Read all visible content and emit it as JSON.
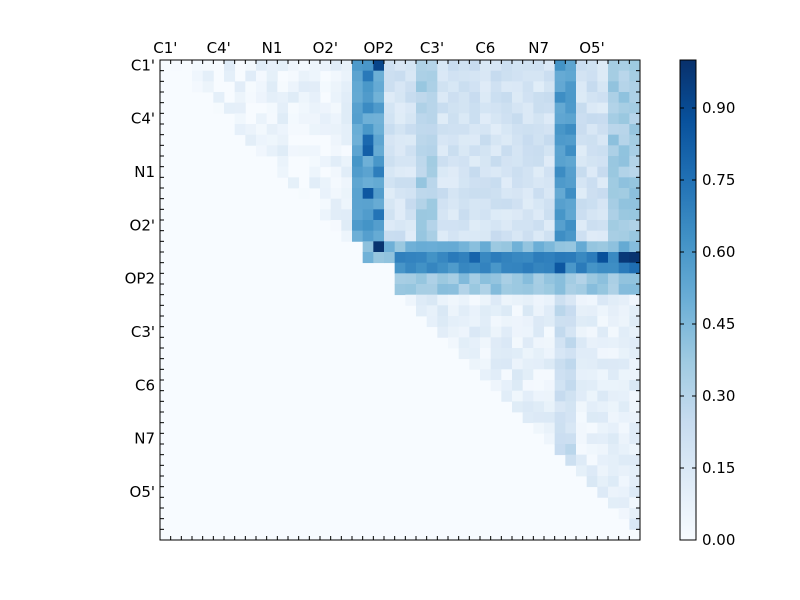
{
  "chart_data": {
    "type": "heatmap",
    "title": "",
    "xlabel": "",
    "ylabel": "",
    "colormap": "Blues",
    "cmap_stops": [
      "#f7fbff",
      "#deebf7",
      "#c6dbef",
      "#9ecae1",
      "#6baed6",
      "#4292c6",
      "#2171b5",
      "#08519c",
      "#08306b"
    ],
    "n": 45,
    "x_tick_labels": [
      "C1'",
      "C4'",
      "N1",
      "O2'",
      "OP2",
      "C3'",
      "C6",
      "N7",
      "O5'"
    ],
    "y_tick_labels": [
      "C1'",
      "C4'",
      "N1",
      "O2'",
      "OP2",
      "C3'",
      "C6",
      "N7",
      "O5'"
    ],
    "label_every": 5,
    "label_offset": 0.5,
    "vmin": 0.0,
    "vmax": 1.0,
    "colorbar_ticks": [
      "0.00",
      "0.15",
      "0.30",
      "0.45",
      "0.60",
      "0.75",
      "0.90"
    ],
    "triangle": "upper",
    "note_values": "approximate per-cell correlation values; lower triangle is 0",
    "regions": [
      {
        "rows": [
          0,
          17
        ],
        "cols": [
          1,
          18
        ],
        "value": 0.05
      },
      {
        "rows": [
          0,
          17
        ],
        "cols": [
          18,
          21
        ],
        "value": 0.55
      },
      {
        "rows": [
          0,
          17
        ],
        "cols": [
          21,
          45
        ],
        "value": 0.18
      },
      {
        "rows": [
          0,
          17
        ],
        "cols": [
          24,
          26
        ],
        "value": 0.33
      },
      {
        "rows": [
          0,
          17
        ],
        "cols": [
          37,
          39
        ],
        "value": 0.58
      },
      {
        "rows": [
          0,
          17
        ],
        "cols": [
          42,
          45
        ],
        "value": 0.35
      },
      {
        "rows": [
          1,
          2
        ],
        "cols": [
          0,
          45
        ],
        "value": null
      },
      {
        "rows": [
          17,
          19
        ],
        "cols": [
          19,
          45
        ],
        "value": 0.45
      },
      {
        "rows": [
          18,
          20
        ],
        "cols": [
          22,
          45
        ],
        "value": 0.65
      },
      {
        "rows": [
          20,
          22
        ],
        "cols": [
          22,
          45
        ],
        "value": 0.38
      },
      {
        "rows": [
          22,
          45
        ],
        "cols": [
          22,
          45
        ],
        "value": 0.08
      },
      {
        "rows": [
          22,
          45
        ],
        "cols": [
          37,
          39
        ],
        "value": 0.22
      }
    ],
    "highlights": [
      {
        "row": 0,
        "col": 20,
        "value": 0.92
      },
      {
        "row": 1,
        "col": 19,
        "value": 0.72
      },
      {
        "row": 4,
        "col": 19,
        "value": 0.65
      },
      {
        "row": 7,
        "col": 19,
        "value": 0.78
      },
      {
        "row": 8,
        "col": 19,
        "value": 0.82
      },
      {
        "row": 10,
        "col": 20,
        "value": 0.7
      },
      {
        "row": 12,
        "col": 19,
        "value": 0.85
      },
      {
        "row": 14,
        "col": 20,
        "value": 0.74
      },
      {
        "row": 17,
        "col": 20,
        "value": 0.99
      },
      {
        "row": 18,
        "col": 29,
        "value": 0.8
      },
      {
        "row": 18,
        "col": 37,
        "value": 0.72
      },
      {
        "row": 18,
        "col": 41,
        "value": 0.88
      },
      {
        "row": 18,
        "col": 43,
        "value": 0.97
      },
      {
        "row": 18,
        "col": 44,
        "value": 0.99
      },
      {
        "row": 19,
        "col": 37,
        "value": 0.85
      },
      {
        "row": 19,
        "col": 44,
        "value": 0.76
      }
    ]
  }
}
